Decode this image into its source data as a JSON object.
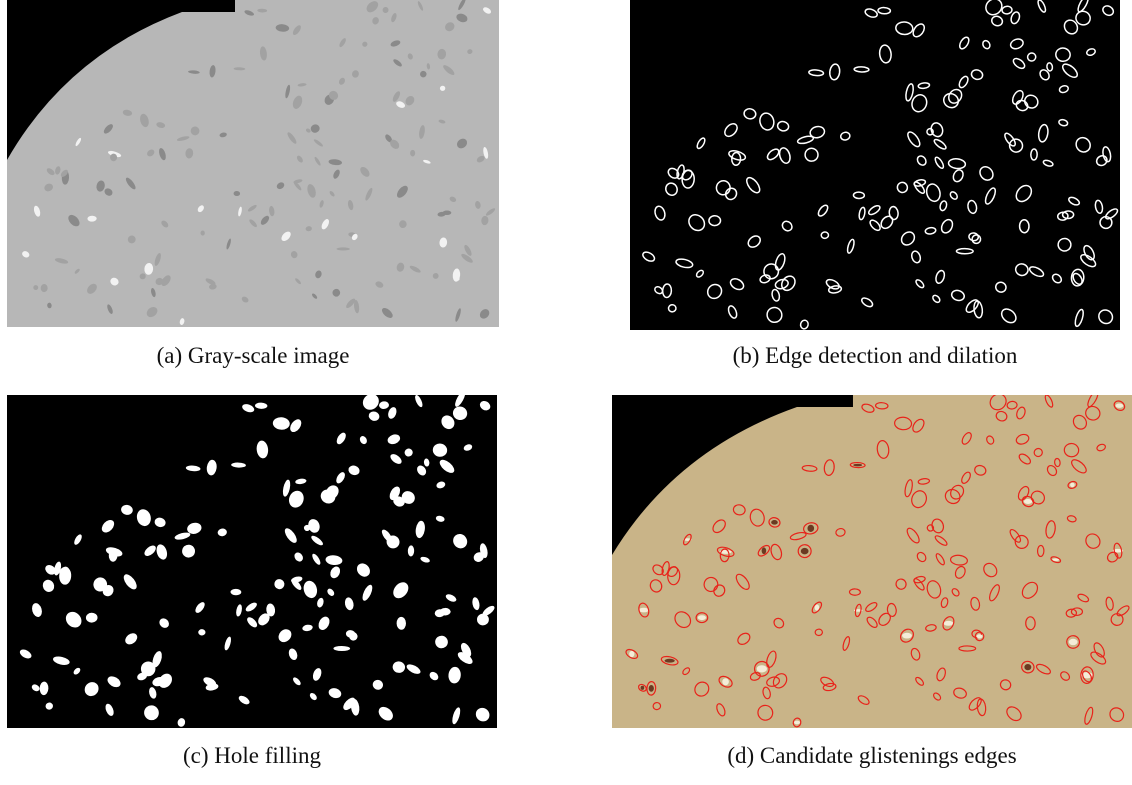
{
  "panels": [
    {
      "caption": "(a) Gray-scale image"
    },
    {
      "caption": "(b) Edge detection and dilation"
    },
    {
      "caption": "(c) Hole filling"
    },
    {
      "caption": "(d) Candidate glistenings edges"
    }
  ]
}
